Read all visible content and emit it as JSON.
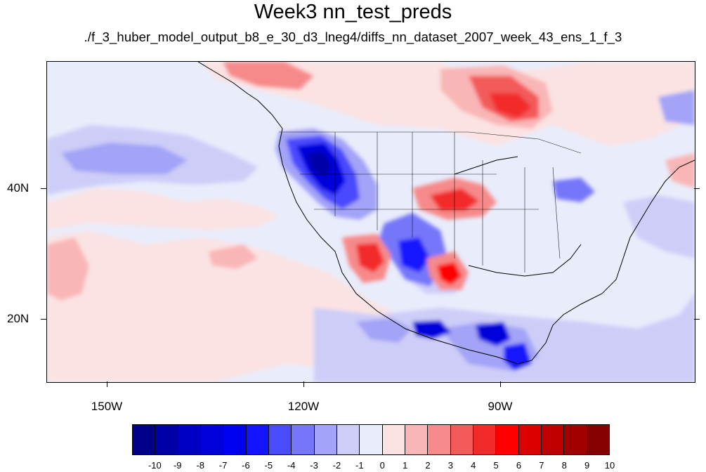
{
  "title": "Week3 nn_test_preds",
  "subtitle": "./f_3_huber_model_output_b8_e_30_d3_lneg4/diffs_nn_dataset_2007_week_43_ens_1_f_3",
  "map": {
    "projection": "cylindrical-equidistant",
    "lon_range": [
      -160,
      -61
    ],
    "lat_range": [
      11,
      59
    ],
    "lon_labels": [
      {
        "value": -150,
        "text": "150W"
      },
      {
        "value": -120,
        "text": "120W"
      },
      {
        "value": -90,
        "text": "90W"
      }
    ],
    "lat_labels": [
      {
        "value": 20,
        "text": "20N"
      },
      {
        "value": 40,
        "text": "40N"
      }
    ]
  },
  "colorbar": {
    "levels": [
      "-10",
      "-9",
      "-8",
      "-7",
      "-6",
      "-5",
      "-4",
      "-3",
      "-2",
      "-1",
      "0",
      "1",
      "2",
      "3",
      "4",
      "5",
      "6",
      "7",
      "8",
      "9",
      "10"
    ],
    "colors": [
      "#00008a",
      "#0000a8",
      "#0000c4",
      "#0000db",
      "#0000f0",
      "#1414ff",
      "#4a4aff",
      "#7676fa",
      "#a3a3f7",
      "#cdcdf8",
      "#e9ecfb",
      "#fbe3e3",
      "#f9b6b6",
      "#f68a8a",
      "#f35a5a",
      "#f22a2a",
      "#ff0000",
      "#dd0000",
      "#c00000",
      "#a20000",
      "#850000"
    ]
  }
}
